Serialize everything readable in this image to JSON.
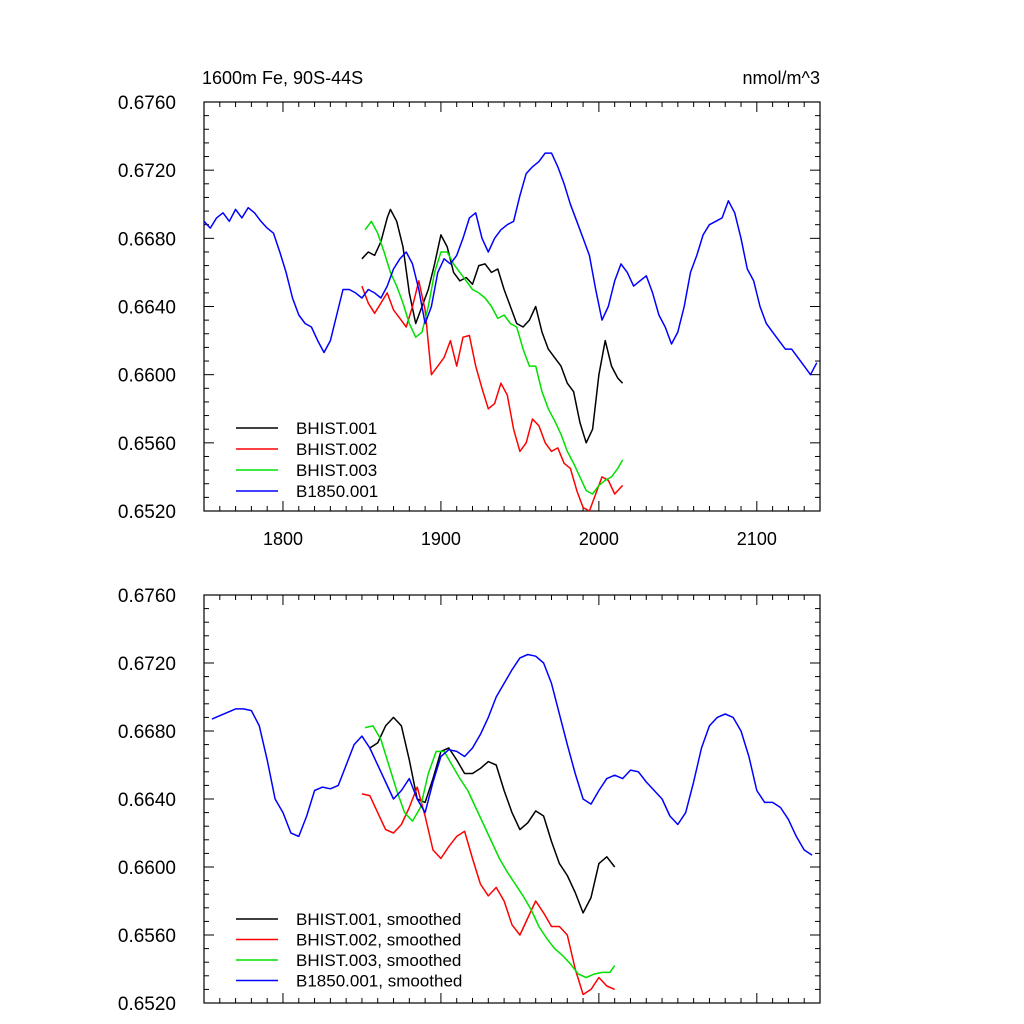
{
  "chart_data": [
    {
      "type": "line",
      "title": "1600m Fe, 90S-44S",
      "units": "nmol/m^3",
      "xlim": [
        1750,
        2140
      ],
      "ylim": [
        0.652,
        0.676
      ],
      "x_ticks": [
        1800,
        1900,
        2000,
        2100
      ],
      "x_tick_labels": [
        "1800",
        "1900",
        "2000",
        "2100"
      ],
      "y_ticks": [
        0.652,
        0.656,
        0.66,
        0.664,
        0.668,
        0.672,
        0.676
      ],
      "y_tick_labels": [
        "0.6520",
        "0.6560",
        "0.6600",
        "0.6640",
        "0.6680",
        "0.6720",
        "0.6760"
      ],
      "legend_position": "bottom-left",
      "series": [
        {
          "name": "BHIST.001",
          "color": "#000000",
          "x": [
            1850,
            1854,
            1858,
            1862,
            1866,
            1868,
            1872,
            1876,
            1880,
            1884,
            1888,
            1892,
            1896,
            1900,
            1904,
            1908,
            1912,
            1916,
            1920,
            1924,
            1928,
            1932,
            1936,
            1940,
            1944,
            1948,
            1952,
            1956,
            1960,
            1964,
            1968,
            1972,
            1976,
            1980,
            1984,
            1988,
            1992,
            1996,
            2000,
            2004,
            2008,
            2012,
            2015
          ],
          "y": [
            0.6668,
            0.6672,
            0.667,
            0.6678,
            0.6692,
            0.6697,
            0.669,
            0.6675,
            0.6648,
            0.663,
            0.664,
            0.665,
            0.6665,
            0.6682,
            0.6675,
            0.666,
            0.6655,
            0.6657,
            0.6653,
            0.6664,
            0.6665,
            0.666,
            0.6662,
            0.665,
            0.664,
            0.663,
            0.6628,
            0.6632,
            0.664,
            0.6625,
            0.6615,
            0.661,
            0.6605,
            0.6595,
            0.659,
            0.6572,
            0.656,
            0.6568,
            0.66,
            0.662,
            0.6605,
            0.6598,
            0.6595
          ]
        },
        {
          "name": "BHIST.002",
          "color": "#ff0000",
          "x": [
            1850,
            1854,
            1858,
            1862,
            1866,
            1870,
            1874,
            1878,
            1882,
            1886,
            1890,
            1894,
            1898,
            1902,
            1906,
            1910,
            1914,
            1918,
            1922,
            1926,
            1930,
            1934,
            1938,
            1942,
            1946,
            1950,
            1954,
            1958,
            1962,
            1966,
            1970,
            1974,
            1978,
            1982,
            1986,
            1990,
            1994,
            1998,
            2002,
            2006,
            2010,
            2015
          ],
          "y": [
            0.6652,
            0.6642,
            0.6636,
            0.6642,
            0.6648,
            0.6638,
            0.6633,
            0.6628,
            0.664,
            0.6655,
            0.6638,
            0.66,
            0.6605,
            0.661,
            0.662,
            0.6605,
            0.6622,
            0.6623,
            0.6605,
            0.6592,
            0.658,
            0.6583,
            0.6595,
            0.6588,
            0.6568,
            0.6555,
            0.656,
            0.6574,
            0.657,
            0.656,
            0.6555,
            0.6557,
            0.6548,
            0.6545,
            0.6532,
            0.6522,
            0.652,
            0.653,
            0.654,
            0.6538,
            0.653,
            0.6535
          ]
        },
        {
          "name": "BHIST.003",
          "color": "#00e000",
          "x": [
            1852,
            1856,
            1860,
            1864,
            1868,
            1872,
            1876,
            1880,
            1884,
            1888,
            1892,
            1896,
            1900,
            1904,
            1908,
            1912,
            1916,
            1920,
            1924,
            1928,
            1932,
            1936,
            1940,
            1944,
            1948,
            1952,
            1956,
            1960,
            1964,
            1968,
            1972,
            1976,
            1980,
            1984,
            1988,
            1992,
            1996,
            2000,
            2004,
            2008,
            2012,
            2015
          ],
          "y": [
            0.6685,
            0.669,
            0.6683,
            0.6672,
            0.666,
            0.6652,
            0.6642,
            0.663,
            0.6622,
            0.6625,
            0.664,
            0.666,
            0.6672,
            0.6672,
            0.6665,
            0.666,
            0.6655,
            0.665,
            0.6648,
            0.6645,
            0.664,
            0.6633,
            0.6635,
            0.663,
            0.6628,
            0.6615,
            0.6605,
            0.6605,
            0.659,
            0.658,
            0.6573,
            0.6565,
            0.6555,
            0.6548,
            0.654,
            0.6532,
            0.653,
            0.6535,
            0.6538,
            0.654,
            0.6545,
            0.655
          ]
        },
        {
          "name": "B1850.001",
          "color": "#0000ff",
          "x": [
            1750,
            1754,
            1758,
            1762,
            1766,
            1770,
            1774,
            1778,
            1782,
            1786,
            1790,
            1794,
            1798,
            1802,
            1806,
            1810,
            1814,
            1818,
            1822,
            1826,
            1830,
            1834,
            1838,
            1842,
            1846,
            1850,
            1854,
            1858,
            1862,
            1866,
            1870,
            1874,
            1878,
            1882,
            1886,
            1890,
            1894,
            1898,
            1902,
            1906,
            1910,
            1914,
            1918,
            1922,
            1926,
            1930,
            1934,
            1938,
            1942,
            1946,
            1950,
            1954,
            1958,
            1962,
            1966,
            1970,
            1974,
            1978,
            1982,
            1986,
            1990,
            1994,
            1998,
            2002,
            2006,
            2010,
            2014,
            2018,
            2022,
            2026,
            2030,
            2034,
            2038,
            2042,
            2046,
            2050,
            2054,
            2058,
            2062,
            2066,
            2070,
            2074,
            2078,
            2082,
            2086,
            2090,
            2094,
            2098,
            2102,
            2106,
            2110,
            2114,
            2118,
            2122,
            2126,
            2130,
            2134,
            2138
          ],
          "y": [
            0.669,
            0.6686,
            0.6692,
            0.6695,
            0.669,
            0.6697,
            0.6692,
            0.6698,
            0.6695,
            0.669,
            0.6686,
            0.6683,
            0.6672,
            0.666,
            0.6645,
            0.6635,
            0.663,
            0.6628,
            0.662,
            0.6613,
            0.662,
            0.6635,
            0.665,
            0.665,
            0.6648,
            0.6645,
            0.665,
            0.6648,
            0.6645,
            0.6652,
            0.6662,
            0.6668,
            0.6672,
            0.6665,
            0.665,
            0.663,
            0.664,
            0.666,
            0.6668,
            0.6665,
            0.667,
            0.668,
            0.6692,
            0.6695,
            0.668,
            0.6672,
            0.668,
            0.6685,
            0.6688,
            0.669,
            0.6705,
            0.6718,
            0.6722,
            0.6725,
            0.673,
            0.673,
            0.6722,
            0.6712,
            0.67,
            0.669,
            0.668,
            0.667,
            0.665,
            0.6632,
            0.664,
            0.6655,
            0.6665,
            0.666,
            0.6652,
            0.6655,
            0.6658,
            0.6648,
            0.6635,
            0.6628,
            0.6618,
            0.6625,
            0.664,
            0.666,
            0.667,
            0.6682,
            0.6688,
            0.669,
            0.6692,
            0.6702,
            0.6695,
            0.668,
            0.6662,
            0.6655,
            0.664,
            0.663,
            0.6625,
            0.662,
            0.6615,
            0.6615,
            0.661,
            0.6605,
            0.66,
            0.6607
          ]
        }
      ]
    },
    {
      "type": "line",
      "xlim": [
        1750,
        2140
      ],
      "ylim": [
        0.652,
        0.676
      ],
      "x_ticks": [
        1800,
        1900,
        2000,
        2100
      ],
      "y_ticks": [
        0.652,
        0.656,
        0.66,
        0.664,
        0.668,
        0.672,
        0.676
      ],
      "y_tick_labels": [
        "0.6520",
        "0.6560",
        "0.6600",
        "0.6640",
        "0.6680",
        "0.6720",
        "0.6760"
      ],
      "legend_position": "bottom-left",
      "series": [
        {
          "name": "BHIST.001, smoothed",
          "color": "#000000",
          "x": [
            1855,
            1860,
            1865,
            1870,
            1875,
            1880,
            1885,
            1890,
            1895,
            1900,
            1905,
            1910,
            1915,
            1920,
            1925,
            1930,
            1935,
            1940,
            1945,
            1950,
            1955,
            1960,
            1965,
            1970,
            1975,
            1980,
            1985,
            1990,
            1995,
            2000,
            2005,
            2010
          ],
          "y": [
            0.667,
            0.6673,
            0.6683,
            0.6688,
            0.6683,
            0.6663,
            0.664,
            0.6638,
            0.6652,
            0.6668,
            0.667,
            0.6663,
            0.6655,
            0.6655,
            0.6658,
            0.6662,
            0.666,
            0.6645,
            0.6632,
            0.6622,
            0.6626,
            0.6633,
            0.663,
            0.6615,
            0.6602,
            0.6595,
            0.6585,
            0.6573,
            0.6582,
            0.6602,
            0.6606,
            0.66
          ]
        },
        {
          "name": "BHIST.002, smoothed",
          "color": "#ff0000",
          "x": [
            1850,
            1855,
            1860,
            1865,
            1870,
            1875,
            1880,
            1885,
            1890,
            1895,
            1900,
            1905,
            1910,
            1915,
            1920,
            1925,
            1930,
            1935,
            1940,
            1945,
            1950,
            1955,
            1960,
            1965,
            1970,
            1975,
            1980,
            1985,
            1990,
            1995,
            2000,
            2005,
            2010
          ],
          "y": [
            0.6643,
            0.6642,
            0.6632,
            0.6622,
            0.662,
            0.6625,
            0.6635,
            0.6647,
            0.663,
            0.661,
            0.6605,
            0.6612,
            0.6618,
            0.6621,
            0.6605,
            0.659,
            0.6583,
            0.6588,
            0.658,
            0.6566,
            0.656,
            0.657,
            0.658,
            0.6573,
            0.6565,
            0.6565,
            0.656,
            0.654,
            0.6525,
            0.6528,
            0.6535,
            0.653,
            0.6528
          ]
        },
        {
          "name": "BHIST.003, smoothed",
          "color": "#00e000",
          "x": [
            1852,
            1857,
            1862,
            1867,
            1872,
            1877,
            1882,
            1887,
            1892,
            1897,
            1902,
            1907,
            1912,
            1917,
            1922,
            1927,
            1932,
            1937,
            1942,
            1947,
            1952,
            1957,
            1962,
            1967,
            1972,
            1977,
            1982,
            1987,
            1992,
            1997,
            2002,
            2007,
            2010
          ],
          "y": [
            0.6682,
            0.6683,
            0.6675,
            0.666,
            0.6645,
            0.6632,
            0.6627,
            0.6635,
            0.6655,
            0.6668,
            0.6668,
            0.666,
            0.6652,
            0.6645,
            0.6635,
            0.6625,
            0.6615,
            0.6605,
            0.6597,
            0.659,
            0.6583,
            0.6575,
            0.6565,
            0.6558,
            0.6552,
            0.6548,
            0.6543,
            0.6537,
            0.6535,
            0.6537,
            0.6538,
            0.6538,
            0.6542
          ]
        },
        {
          "name": "B1850.001, smoothed",
          "color": "#0000ff",
          "x": [
            1755,
            1760,
            1765,
            1770,
            1775,
            1780,
            1785,
            1790,
            1795,
            1800,
            1805,
            1810,
            1815,
            1820,
            1825,
            1830,
            1835,
            1840,
            1845,
            1850,
            1855,
            1860,
            1865,
            1870,
            1875,
            1880,
            1885,
            1890,
            1895,
            1900,
            1905,
            1910,
            1915,
            1920,
            1925,
            1930,
            1935,
            1940,
            1945,
            1950,
            1955,
            1960,
            1965,
            1970,
            1975,
            1980,
            1985,
            1990,
            1995,
            2000,
            2005,
            2010,
            2015,
            2020,
            2025,
            2030,
            2035,
            2040,
            2045,
            2050,
            2055,
            2060,
            2065,
            2070,
            2075,
            2080,
            2085,
            2090,
            2095,
            2100,
            2105,
            2110,
            2115,
            2120,
            2125,
            2130,
            2135
          ],
          "y": [
            0.6687,
            0.6689,
            0.6691,
            0.6693,
            0.6693,
            0.6692,
            0.6683,
            0.6663,
            0.664,
            0.6632,
            0.662,
            0.6618,
            0.663,
            0.6645,
            0.6647,
            0.6646,
            0.6648,
            0.666,
            0.6672,
            0.6677,
            0.667,
            0.666,
            0.665,
            0.664,
            0.6645,
            0.6652,
            0.664,
            0.6632,
            0.665,
            0.6665,
            0.6669,
            0.6668,
            0.6665,
            0.667,
            0.6678,
            0.6688,
            0.67,
            0.6708,
            0.6716,
            0.6723,
            0.6725,
            0.6724,
            0.672,
            0.6708,
            0.669,
            0.6672,
            0.6655,
            0.664,
            0.6637,
            0.6645,
            0.6652,
            0.6654,
            0.6652,
            0.6657,
            0.6656,
            0.665,
            0.6645,
            0.664,
            0.663,
            0.6625,
            0.6632,
            0.665,
            0.667,
            0.6683,
            0.6688,
            0.669,
            0.6688,
            0.668,
            0.6665,
            0.6645,
            0.6638,
            0.6638,
            0.6635,
            0.6628,
            0.6618,
            0.661,
            0.6607
          ]
        }
      ]
    }
  ]
}
